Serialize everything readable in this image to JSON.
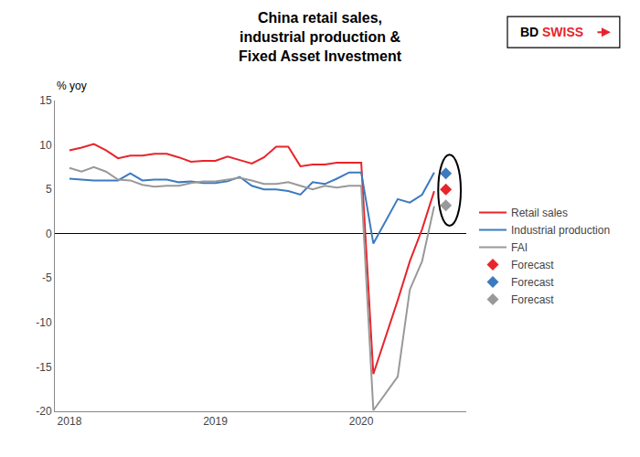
{
  "chart_data": {
    "type": "line",
    "title": "China retail sales,\nindustrial production &\nFixed Asset Investment",
    "y_label": "% yoy",
    "x": [
      2018.0,
      2018.083,
      2018.167,
      2018.25,
      2018.333,
      2018.417,
      2018.5,
      2018.583,
      2018.667,
      2018.75,
      2018.833,
      2018.917,
      2019.0,
      2019.083,
      2019.167,
      2019.25,
      2019.333,
      2019.417,
      2019.5,
      2019.583,
      2019.667,
      2019.75,
      2019.833,
      2019.917,
      2020.0,
      2020.083,
      2020.25,
      2020.333,
      2020.417,
      2020.5
    ],
    "series": [
      {
        "name": "Retail sales",
        "color": "#e8242b",
        "values": [
          9.4,
          9.7,
          10.1,
          9.4,
          8.5,
          8.8,
          8.8,
          9.0,
          9.0,
          8.6,
          8.1,
          8.2,
          8.2,
          8.7,
          8.3,
          7.9,
          8.6,
          9.8,
          9.8,
          7.6,
          7.8,
          7.8,
          8.0,
          8.0,
          8.0,
          -15.8,
          -7.5,
          -3.1,
          0.5,
          4.8
        ]
      },
      {
        "name": "Industrial production",
        "color": "#3c7abf",
        "values": [
          6.2,
          6.1,
          6.0,
          6.0,
          6.0,
          6.8,
          6.0,
          6.1,
          6.1,
          5.8,
          5.9,
          5.7,
          5.7,
          5.9,
          6.4,
          5.4,
          5.0,
          5.0,
          4.8,
          4.4,
          5.8,
          5.6,
          6.2,
          6.9,
          6.9,
          -1.1,
          3.9,
          3.5,
          4.4,
          6.9
        ]
      },
      {
        "name": "FAI",
        "color": "#999999",
        "values": [
          7.4,
          7.0,
          7.5,
          7.0,
          6.1,
          6.0,
          5.5,
          5.3,
          5.4,
          5.4,
          5.7,
          5.9,
          5.9,
          6.1,
          6.3,
          6.0,
          5.6,
          5.6,
          5.8,
          5.4,
          5.0,
          5.4,
          5.2,
          5.4,
          5.4,
          -19.9,
          -16.1,
          -6.3,
          -3.1,
          3.1
        ]
      },
      {
        "name": "Forecast",
        "type": "scatter",
        "marker": "diamond",
        "color": "#e8242b",
        "x": [
          2020.58
        ],
        "values": [
          5.0
        ]
      },
      {
        "name": "Forecast",
        "type": "scatter",
        "marker": "diamond",
        "color": "#3c7abf",
        "x": [
          2020.58
        ],
        "values": [
          6.8
        ]
      },
      {
        "name": "Forecast",
        "type": "scatter",
        "marker": "diamond",
        "color": "#999999",
        "x": [
          2020.58
        ],
        "values": [
          3.2
        ]
      }
    ],
    "ellipse": {
      "center_x": 2020.605,
      "center_y": 4.9,
      "width": 0.155,
      "height": 8.0
    },
    "annotations": [
      {
        "text": "BD"
      },
      {
        "text": "SWISS",
        "color": "#e8242b"
      }
    ],
    "xlim": [
      2017.9,
      2020.72
    ],
    "xticks": [
      2018,
      2019,
      2020
    ],
    "ylim": [
      -20,
      15
    ],
    "yticks": [
      -20,
      -15,
      -10,
      -5,
      0,
      5,
      10,
      15
    ],
    "grid": false,
    "legend": "right"
  }
}
